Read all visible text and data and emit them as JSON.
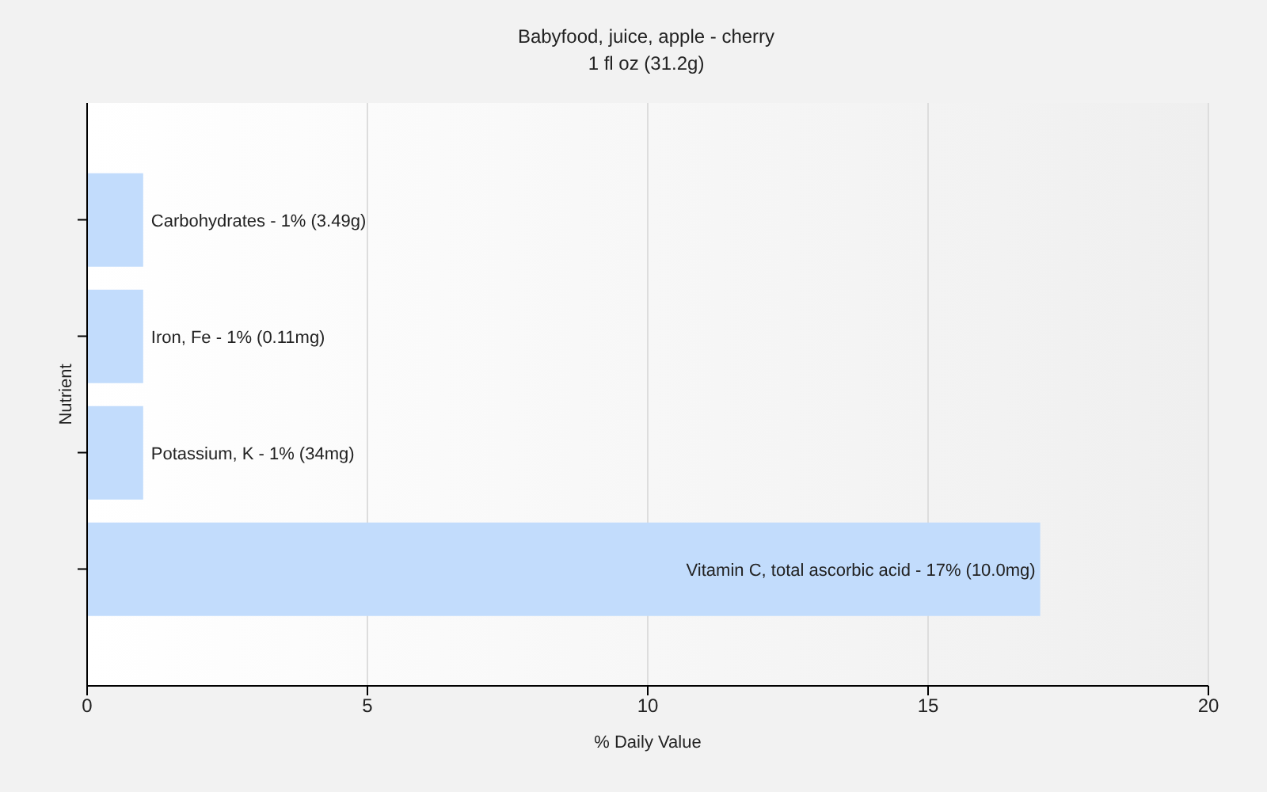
{
  "chart_data": {
    "type": "bar",
    "orientation": "horizontal",
    "title": "Babyfood, juice, apple - cherry",
    "subtitle": "1 fl oz (31.2g)",
    "xlabel": "% Daily Value",
    "ylabel": "Nutrient",
    "categories": [
      "Carbohydrates -",
      "Iron, Fe -",
      "Potassium, K -",
      "Vitamin C, total ascorbic acid -"
    ],
    "values": [
      1,
      1,
      1,
      17
    ],
    "color": "#c2dcfc",
    "value_labels": [
      "1% (3.49g)",
      "1% (0.11mg)",
      "1% (34mg)",
      "17% (10.0mg)"
    ],
    "xlim": [
      0,
      20
    ],
    "xticks": [
      0,
      5,
      10,
      15,
      20
    ],
    "grid": "x",
    "legend": false
  }
}
